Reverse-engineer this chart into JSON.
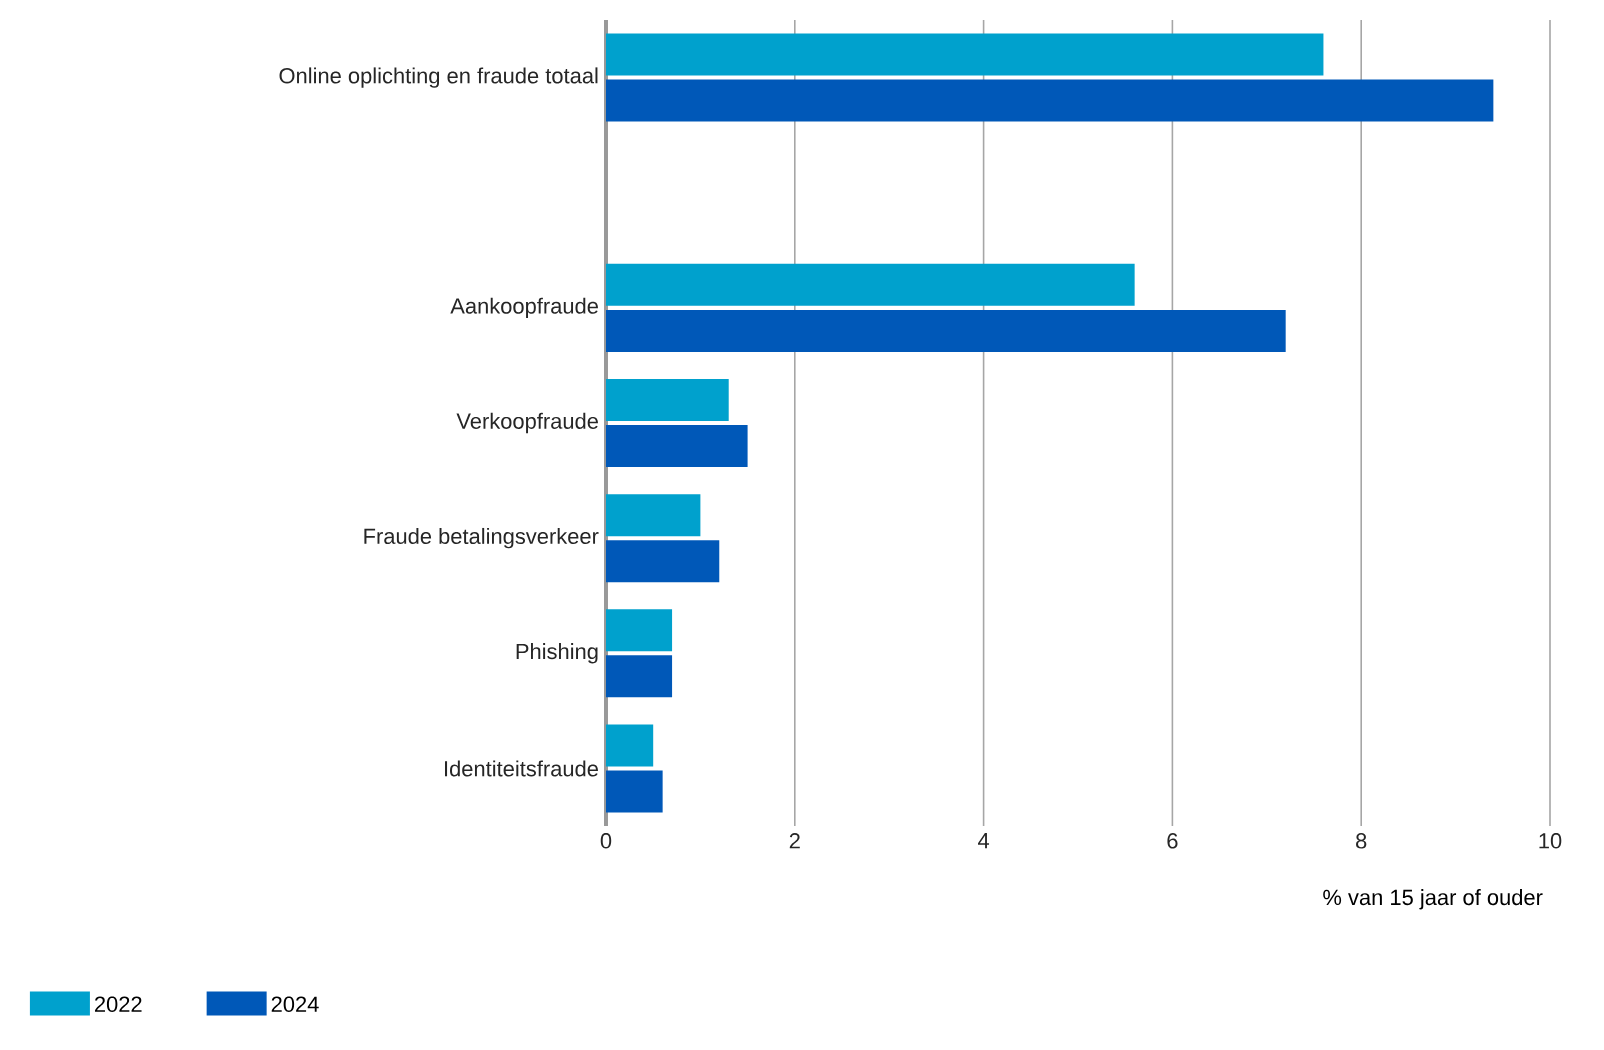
{
  "chart_data": {
    "type": "bar",
    "orientation": "horizontal",
    "categories": [
      "Online oplichting en fraude totaal",
      null,
      "Aankoopfraude",
      "Verkoopfraude",
      "Fraude betalingsverkeer",
      "Phishing",
      "Identiteitsfraude"
    ],
    "series": [
      {
        "name": "2022",
        "color": "#00a1cd",
        "values": [
          7.6,
          null,
          5.6,
          1.3,
          1.0,
          0.7,
          0.5
        ]
      },
      {
        "name": "2024",
        "color": "#0058b8",
        "values": [
          9.4,
          null,
          7.2,
          1.5,
          1.2,
          0.7,
          0.6
        ]
      }
    ],
    "xlabel": "% van 15 jaar of ouder",
    "xlim": [
      0,
      10
    ],
    "xticks": [
      0,
      2,
      4,
      6,
      8,
      10
    ],
    "grid": "x",
    "legend": "bottom left"
  }
}
